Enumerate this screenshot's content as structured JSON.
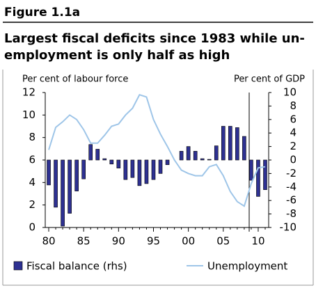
{
  "figure_label": "Figure 1.1a",
  "chart_data": {
    "type": "bar-line",
    "title": [
      "Largest fiscal deficits since 1983 while un-",
      "employment is only half as high"
    ],
    "y_label": "Per cent of labour force",
    "y2_label": "Per cent of GDP",
    "categories": [
      "80",
      null,
      null,
      null,
      null,
      "85",
      null,
      null,
      null,
      null,
      "90",
      null,
      null,
      null,
      null,
      "95",
      null,
      null,
      null,
      null,
      "00",
      null,
      null,
      null,
      null,
      "05",
      null,
      null,
      null,
      null,
      "10",
      null
    ],
    "ylim": [
      0,
      12
    ],
    "yticks": [
      0,
      2,
      4,
      6,
      8,
      10,
      12
    ],
    "y2lim": [
      -10,
      10
    ],
    "y2ticks": [
      -10,
      -8,
      -6,
      -4,
      -2,
      0,
      2,
      4,
      6,
      8,
      10
    ],
    "series": [
      {
        "name": "Fiscal balance (rhs)",
        "type": "bar",
        "axis": "y2",
        "color": "#2e3192",
        "values": [
          -3.7,
          -7.0,
          -9.8,
          -7.9,
          -4.6,
          -2.8,
          2.3,
          1.6,
          0.2,
          -0.6,
          -1.2,
          -2.9,
          -2.6,
          -3.8,
          -3.5,
          -2.9,
          -2.0,
          -0.7,
          0,
          1.3,
          2.0,
          1.3,
          0.2,
          0.1,
          2.1,
          5.0,
          5.0,
          4.8,
          3.5,
          -3.0,
          -5.4,
          -4.4
        ]
      },
      {
        "name": "Unemployment",
        "type": "line",
        "color": "#9ec5e8",
        "values": [
          6.9,
          8.9,
          9.4,
          10.0,
          9.6,
          8.7,
          7.5,
          7.5,
          8.2,
          9.0,
          9.2,
          10.0,
          10.6,
          11.8,
          11.6,
          9.6,
          8.3,
          7.2,
          6.0,
          5.1,
          4.8,
          4.6,
          4.6,
          5.4,
          5.6,
          4.6,
          3.2,
          2.3,
          1.9,
          3.9,
          5.3,
          5.4
        ]
      }
    ]
  }
}
